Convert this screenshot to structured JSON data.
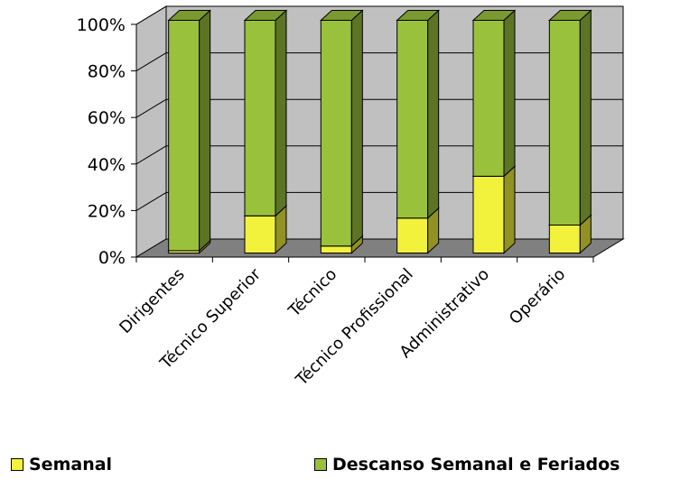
{
  "chart_data": {
    "type": "bar",
    "stacked": true,
    "percent": true,
    "three_d": true,
    "categories": [
      "Dirigentes",
      "Técnico Superior",
      "Técnico",
      "Técnico Profissional",
      "Administrativo",
      "Operário"
    ],
    "series": [
      {
        "name": "Semanal",
        "values": [
          1,
          16,
          3,
          15,
          33,
          12
        ],
        "color": "#f2f23c"
      },
      {
        "name": "Descanso Semanal e Feriados",
        "values": [
          99,
          84,
          97,
          85,
          67,
          88
        ],
        "color": "#99c13c"
      }
    ],
    "ylim": [
      0,
      100
    ],
    "yticks": [
      "0%",
      "20%",
      "40%",
      "60%",
      "80%",
      "100%"
    ],
    "grid": true,
    "legend_position": "bottom",
    "colors": {
      "wall": "#c0c0c0",
      "floor": "#808080",
      "grid": "#000000"
    }
  }
}
